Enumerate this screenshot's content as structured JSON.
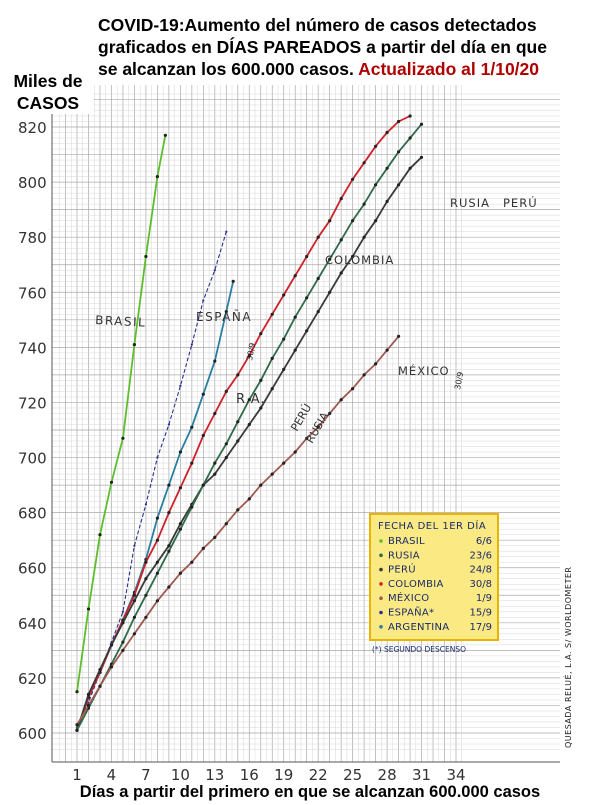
{
  "header": {
    "title_lines": [
      "COVID-19:Aumento del número de casos detectados",
      "graficados en DÍAS PAREADOS a partir del día en que",
      "se alcanzan los 600.000 casos."
    ],
    "update_note": "Actualizado al 1/10/20"
  },
  "axis": {
    "y_title_line1": "Miles de",
    "y_title_line2": "CASOS",
    "x_title": "Días a partir del primero en que se alcanzan 600.000 casos"
  },
  "side_note": "QUESADA RELUÉ, L.A. S/ WORLDOMETER",
  "legend": {
    "title": "FECHA DEL 1ER DÍA",
    "entries": [
      {
        "name": "BRASIL",
        "date": "6/6",
        "color": "#5cbf2a"
      },
      {
        "name": "RUSIA",
        "date": "23/6",
        "color": "#2f6b4a"
      },
      {
        "name": "PERÚ",
        "date": "24/8",
        "color": "#3a3a3a"
      },
      {
        "name": "COLOMBIA",
        "date": "30/8",
        "color": "#d0202a"
      },
      {
        "name": "MÉXICO",
        "date": "1/9",
        "color": "#a05a50"
      },
      {
        "name": "ESPAÑA*",
        "date": "15/9",
        "color": "#2a2f8a"
      },
      {
        "name": "ARGENTINA",
        "date": "17/9",
        "color": "#2a7fa0"
      }
    ],
    "footnote": "(*) SEGUNDO DESCENSO",
    "background": "#fbe983",
    "border": "#e8b400"
  },
  "chart_data": {
    "type": "line",
    "ylim": [
      595,
      830
    ],
    "xlim": [
      -0.5,
      34.5
    ],
    "x_ticks": [
      1,
      4,
      7,
      10,
      13,
      16,
      19,
      22,
      25,
      28,
      31,
      34
    ],
    "y_ticks": [
      600,
      620,
      640,
      660,
      680,
      700,
      720,
      740,
      760,
      780,
      800,
      820
    ],
    "grid": true,
    "series": [
      {
        "name": "BRASIL",
        "color": "#5cbf2a",
        "points": [
          [
            1,
            615
          ],
          [
            2,
            645
          ],
          [
            3,
            672
          ],
          [
            4,
            691
          ],
          [
            5,
            707
          ],
          [
            6,
            741
          ],
          [
            7,
            773
          ],
          [
            8,
            802
          ],
          [
            8.7,
            817
          ]
        ]
      },
      {
        "name": "ESPAÑA",
        "color": "#2a2f8a",
        "dashed": true,
        "points": [
          [
            1,
            602
          ],
          [
            2,
            611
          ],
          [
            3,
            622
          ],
          [
            4,
            633
          ],
          [
            5,
            644
          ],
          [
            6,
            668
          ],
          [
            7,
            683
          ],
          [
            8,
            700
          ],
          [
            9,
            712
          ],
          [
            10,
            726
          ],
          [
            11,
            741
          ],
          [
            12,
            757
          ],
          [
            13,
            768
          ],
          [
            14,
            782
          ]
        ]
      },
      {
        "name": "R.A.",
        "color": "#2a7fa0",
        "points": [
          [
            1,
            601
          ],
          [
            2,
            613
          ],
          [
            3,
            622
          ],
          [
            4,
            632
          ],
          [
            5,
            641
          ],
          [
            6,
            651
          ],
          [
            7,
            663
          ],
          [
            8,
            678
          ],
          [
            9,
            690
          ],
          [
            10,
            702
          ],
          [
            11,
            711
          ],
          [
            12,
            723
          ],
          [
            13,
            735
          ],
          [
            14,
            753
          ],
          [
            14.6,
            764
          ]
        ]
      },
      {
        "name": "COLOMBIA",
        "color": "#d0202a",
        "points": [
          [
            1,
            601
          ],
          [
            2,
            613
          ],
          [
            3,
            622
          ],
          [
            4,
            632
          ],
          [
            5,
            641
          ],
          [
            6,
            650
          ],
          [
            7,
            662
          ],
          [
            8,
            670
          ],
          [
            9,
            680
          ],
          [
            10,
            689
          ],
          [
            11,
            698
          ],
          [
            12,
            708
          ],
          [
            13,
            716
          ],
          [
            14,
            724
          ],
          [
            15,
            730
          ],
          [
            16,
            737
          ],
          [
            17,
            745
          ],
          [
            18,
            752
          ],
          [
            19,
            759
          ],
          [
            20,
            766
          ],
          [
            21,
            773
          ],
          [
            22,
            780
          ],
          [
            23,
            786
          ],
          [
            24,
            794
          ],
          [
            25,
            801
          ],
          [
            26,
            807
          ],
          [
            27,
            813
          ],
          [
            28,
            818
          ],
          [
            29,
            822
          ],
          [
            30,
            824
          ]
        ]
      },
      {
        "name": "PERÚ",
        "color": "#3a3a3a",
        "points": [
          [
            1,
            601
          ],
          [
            2,
            614
          ],
          [
            3,
            623
          ],
          [
            4,
            632
          ],
          [
            5,
            640
          ],
          [
            6,
            648
          ],
          [
            7,
            656
          ],
          [
            8,
            662
          ],
          [
            9,
            668
          ],
          [
            10,
            676
          ],
          [
            11,
            683
          ],
          [
            12,
            690
          ],
          [
            13,
            694
          ],
          [
            14,
            700
          ],
          [
            15,
            706
          ],
          [
            16,
            712
          ],
          [
            17,
            718
          ],
          [
            18,
            725
          ],
          [
            19,
            732
          ],
          [
            20,
            739
          ],
          [
            21,
            746
          ],
          [
            22,
            753
          ],
          [
            23,
            760
          ],
          [
            24,
            767
          ],
          [
            25,
            773
          ],
          [
            26,
            780
          ],
          [
            27,
            786
          ],
          [
            28,
            793
          ],
          [
            29,
            799
          ],
          [
            30,
            805
          ],
          [
            31,
            809
          ]
        ]
      },
      {
        "name": "RUSIA",
        "color": "#2f6b4a",
        "points": [
          [
            1,
            601
          ],
          [
            2,
            609
          ],
          [
            3,
            617
          ],
          [
            4,
            625
          ],
          [
            5,
            633
          ],
          [
            6,
            642
          ],
          [
            7,
            650
          ],
          [
            8,
            658
          ],
          [
            9,
            666
          ],
          [
            10,
            674
          ],
          [
            11,
            682
          ],
          [
            12,
            690
          ],
          [
            13,
            698
          ],
          [
            14,
            705
          ],
          [
            15,
            713
          ],
          [
            16,
            721
          ],
          [
            17,
            728
          ],
          [
            18,
            736
          ],
          [
            19,
            743
          ],
          [
            20,
            751
          ],
          [
            21,
            758
          ],
          [
            22,
            765
          ],
          [
            23,
            772
          ],
          [
            24,
            779
          ],
          [
            25,
            786
          ],
          [
            26,
            792
          ],
          [
            27,
            799
          ],
          [
            28,
            805
          ],
          [
            29,
            811
          ],
          [
            30,
            816
          ],
          [
            31,
            821
          ]
        ]
      },
      {
        "name": "MÉXICO",
        "color": "#a05a50",
        "points": [
          [
            1,
            603
          ],
          [
            2,
            610
          ],
          [
            3,
            617
          ],
          [
            4,
            624
          ],
          [
            5,
            630
          ],
          [
            6,
            636
          ],
          [
            7,
            642
          ],
          [
            8,
            648
          ],
          [
            9,
            653
          ],
          [
            10,
            658
          ],
          [
            11,
            662
          ],
          [
            12,
            667
          ],
          [
            13,
            671
          ],
          [
            14,
            676
          ],
          [
            15,
            681
          ],
          [
            16,
            685
          ],
          [
            17,
            690
          ],
          [
            18,
            694
          ],
          [
            19,
            698
          ],
          [
            20,
            702
          ],
          [
            21,
            707
          ],
          [
            22,
            711
          ],
          [
            23,
            716
          ],
          [
            24,
            721
          ],
          [
            25,
            725
          ],
          [
            26,
            730
          ],
          [
            27,
            734
          ],
          [
            28,
            739
          ],
          [
            29,
            744
          ]
        ]
      }
    ],
    "annotations": [
      "BRASIL",
      "ESPAÑA",
      "R.A.",
      "COLOMBIA",
      "PERÚ",
      "RUSIA",
      "MÉXICO",
      "30/9",
      "30/9"
    ]
  }
}
